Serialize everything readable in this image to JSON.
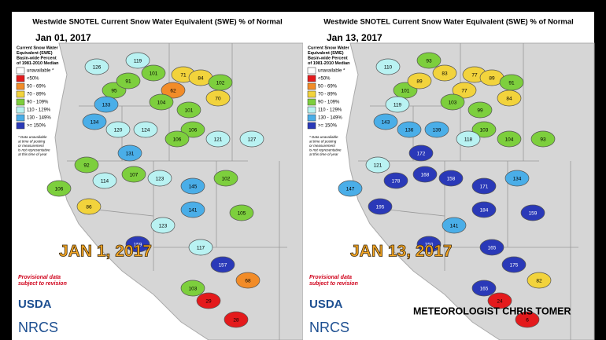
{
  "panels": [
    {
      "title": "Westwide SNOTEL Current Snow Water Equivalent (SWE) % of Normal",
      "date": "Jan 01, 2017",
      "legend": {
        "heading": [
          "Current Snow Water",
          "Equivalent (SWE)",
          "Basin-wide Percent",
          "of 1981-2010 Median"
        ],
        "items": [
          {
            "label": "unavailable *",
            "color": "#ffffff"
          },
          {
            "label": "<50%",
            "color": "#e41a1c"
          },
          {
            "label": "50 - 69%",
            "color": "#f28c28"
          },
          {
            "label": "70 - 89%",
            "color": "#f2d33c"
          },
          {
            "label": "90 - 109%",
            "color": "#7dcf3d"
          },
          {
            "label": "110 - 129%",
            "color": "#b9f2f2"
          },
          {
            "label": "130 - 149%",
            "color": "#4aaee8"
          },
          {
            "label": ">= 150%",
            "color": "#2a39b8"
          }
        ]
      },
      "note": [
        "* Data unavailable",
        "at time of posting",
        "or measurement",
        "is not representative",
        "at this time of year"
      ],
      "provisional": [
        "Provisional data",
        "subject to revision"
      ],
      "logos": [
        "USDA",
        "NRCS"
      ],
      "overlay": "JAN 1, 2017",
      "basins": [
        {
          "value": 126,
          "color": "#b9f2f2"
        },
        {
          "value": 119,
          "color": "#b9f2f2"
        },
        {
          "value": 101,
          "color": "#7dcf3d"
        },
        {
          "value": 71,
          "color": "#f2d33c"
        },
        {
          "value": 84,
          "color": "#f2d33c"
        },
        {
          "value": 102,
          "color": "#7dcf3d"
        },
        {
          "value": 95,
          "color": "#7dcf3d"
        },
        {
          "value": 91,
          "color": "#7dcf3d"
        },
        {
          "value": 62,
          "color": "#f28c28"
        },
        {
          "value": 70,
          "color": "#f2d33c"
        },
        {
          "value": 133,
          "color": "#4aaee8"
        },
        {
          "value": 104,
          "color": "#7dcf3d"
        },
        {
          "value": 101,
          "color": "#7dcf3d"
        },
        {
          "value": 134,
          "color": "#4aaee8"
        },
        {
          "value": 120,
          "color": "#b9f2f2"
        },
        {
          "value": 124,
          "color": "#b9f2f2"
        },
        {
          "value": 106,
          "color": "#7dcf3d"
        },
        {
          "value": 106,
          "color": "#7dcf3d"
        },
        {
          "value": 92,
          "color": "#7dcf3d"
        },
        {
          "value": 131,
          "color": "#4aaee8"
        },
        {
          "value": 106,
          "color": "#7dcf3d"
        },
        {
          "value": 121,
          "color": "#b9f2f2"
        },
        {
          "value": 127,
          "color": "#b9f2f2"
        },
        {
          "value": 114,
          "color": "#b9f2f2"
        },
        {
          "value": 107,
          "color": "#7dcf3d"
        },
        {
          "value": 86,
          "color": "#f2d33c"
        },
        {
          "value": 123,
          "color": "#b9f2f2"
        },
        {
          "value": 145,
          "color": "#4aaee8"
        },
        {
          "value": 102,
          "color": "#7dcf3d"
        },
        {
          "value": 141,
          "color": "#4aaee8"
        },
        {
          "value": 105,
          "color": "#7dcf3d"
        },
        {
          "value": 123,
          "color": "#b9f2f2"
        },
        {
          "value": 159,
          "color": "#2a39b8"
        },
        {
          "value": 117,
          "color": "#b9f2f2"
        },
        {
          "value": 157,
          "color": "#2a39b8"
        },
        {
          "value": 29,
          "color": "#e41a1c"
        },
        {
          "value": 28,
          "color": "#e41a1c"
        },
        {
          "value": 103,
          "color": "#7dcf3d"
        },
        {
          "value": 68,
          "color": "#f28c28"
        }
      ]
    },
    {
      "title": "Westwide SNOTEL Current Snow Water Equivalent (SWE) % of Normal",
      "date": "Jan 13, 2017",
      "legend": {
        "heading": [
          "Current Snow Water",
          "Equivalent (SWE)",
          "Basin-wide Percent",
          "of 1981-2010 Median"
        ],
        "items": [
          {
            "label": "unavailable *",
            "color": "#ffffff"
          },
          {
            "label": "<50%",
            "color": "#e41a1c"
          },
          {
            "label": "50 - 69%",
            "color": "#f28c28"
          },
          {
            "label": "70 - 89%",
            "color": "#f2d33c"
          },
          {
            "label": "90 - 109%",
            "color": "#7dcf3d"
          },
          {
            "label": "110 - 129%",
            "color": "#b9f2f2"
          },
          {
            "label": "130 - 149%",
            "color": "#4aaee8"
          },
          {
            "label": ">= 150%",
            "color": "#2a39b8"
          }
        ]
      },
      "note": [
        "* Data unavailable",
        "at time of posting",
        "or measurement",
        "is not representative",
        "at this time of year"
      ],
      "provisional": [
        "Provisional data",
        "subject to revision"
      ],
      "logos": [
        "USDA",
        "NRCS"
      ],
      "overlay": "JAN 13, 2017",
      "watermark": "METEOROLOGIST CHRIS TOMER",
      "basins": [
        {
          "value": 110,
          "color": "#b9f2f2"
        },
        {
          "value": 93,
          "color": "#7dcf3d"
        },
        {
          "value": 83,
          "color": "#f2d33c"
        },
        {
          "value": 77,
          "color": "#f2d33c"
        },
        {
          "value": 89,
          "color": "#f2d33c"
        },
        {
          "value": 91,
          "color": "#7dcf3d"
        },
        {
          "value": 101,
          "color": "#7dcf3d"
        },
        {
          "value": 89,
          "color": "#f2d33c"
        },
        {
          "value": 77,
          "color": "#f2d33c"
        },
        {
          "value": 84,
          "color": "#f2d33c"
        },
        {
          "value": 119,
          "color": "#b9f2f2"
        },
        {
          "value": 103,
          "color": "#7dcf3d"
        },
        {
          "value": 99,
          "color": "#7dcf3d"
        },
        {
          "value": 143,
          "color": "#4aaee8"
        },
        {
          "value": 136,
          "color": "#4aaee8"
        },
        {
          "value": 139,
          "color": "#4aaee8"
        },
        {
          "value": 103,
          "color": "#7dcf3d"
        },
        {
          "value": 147,
          "color": "#4aaee8"
        },
        {
          "value": 121,
          "color": "#b9f2f2"
        },
        {
          "value": 172,
          "color": "#2a39b8"
        },
        {
          "value": 118,
          "color": "#b9f2f2"
        },
        {
          "value": 104,
          "color": "#7dcf3d"
        },
        {
          "value": 93,
          "color": "#7dcf3d"
        },
        {
          "value": 178,
          "color": "#2a39b8"
        },
        {
          "value": 168,
          "color": "#2a39b8"
        },
        {
          "value": 195,
          "color": "#2a39b8"
        },
        {
          "value": 158,
          "color": "#2a39b8"
        },
        {
          "value": 171,
          "color": "#2a39b8"
        },
        {
          "value": 134,
          "color": "#4aaee8"
        },
        {
          "value": 184,
          "color": "#2a39b8"
        },
        {
          "value": 159,
          "color": "#2a39b8"
        },
        {
          "value": 141,
          "color": "#4aaee8"
        },
        {
          "value": 150,
          "color": "#2a39b8"
        },
        {
          "value": 165,
          "color": "#2a39b8"
        },
        {
          "value": 175,
          "color": "#2a39b8"
        },
        {
          "value": 24,
          "color": "#e41a1c"
        },
        {
          "value": 6,
          "color": "#e41a1c"
        },
        {
          "value": 165,
          "color": "#2a39b8"
        },
        {
          "value": 82,
          "color": "#f2d33c"
        }
      ]
    }
  ]
}
